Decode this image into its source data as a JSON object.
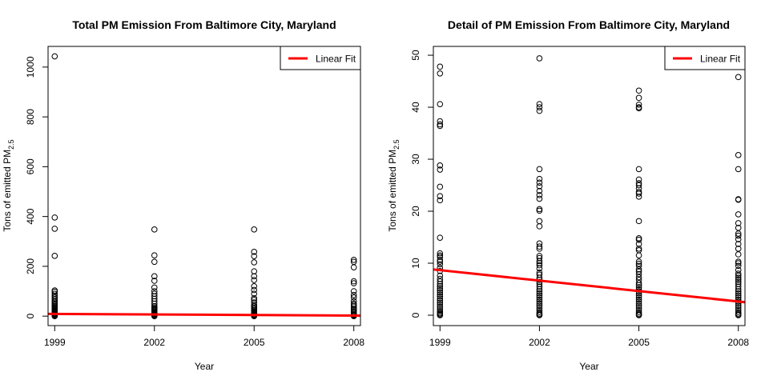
{
  "colors": {
    "fit_line": "#ff0000",
    "points": "#000000",
    "background": "#ffffff"
  },
  "chart_data": [
    {
      "type": "scatter",
      "title": "Total PM Emission From Baltimore City, Maryland",
      "xlabel": "Year",
      "ylabel": "Tons of emitted PM",
      "ylabel_sub": "2.5",
      "xlim": [
        1998.8,
        2008.2
      ],
      "ylim": [
        -38,
        1083
      ],
      "xticks": [
        1999,
        2002,
        2005,
        2008
      ],
      "xtick_labels": [
        "1999",
        "2002",
        "2005",
        "2008"
      ],
      "yticks": [
        0,
        200,
        400,
        600,
        800,
        1000
      ],
      "ytick_labels": [
        "0",
        "200",
        "400",
        "600",
        "800",
        "1000"
      ],
      "legend": {
        "position": "top-right",
        "entries": [
          {
            "label": "Linear Fit",
            "color": "#ff0000"
          }
        ]
      },
      "fit_line": {
        "x": [
          1998.8,
          2008.2
        ],
        "y": [
          9.1,
          2.2
        ]
      },
      "series": [
        {
          "x": 1999,
          "values": [
            1043,
            396,
            351,
            242,
            103,
            98,
            90,
            82,
            75,
            68,
            60,
            55,
            50,
            45,
            40,
            36,
            32,
            28,
            25,
            22,
            20,
            18,
            15,
            12,
            10,
            8,
            6,
            4,
            2,
            1,
            0
          ]
        },
        {
          "x": 2002,
          "values": [
            348,
            244,
            218,
            160,
            142,
            115,
            100,
            90,
            80,
            70,
            60,
            50,
            40,
            35,
            30,
            27,
            24,
            20,
            16,
            12,
            9,
            6,
            3,
            1,
            0
          ]
        },
        {
          "x": 2005,
          "values": [
            348,
            258,
            241,
            216,
            180,
            160,
            145,
            120,
            105,
            90,
            72,
            65,
            55,
            45,
            40,
            35,
            30,
            25,
            20,
            16,
            12,
            8,
            5,
            3,
            1,
            0
          ]
        },
        {
          "x": 2008,
          "values": [
            226,
            218,
            196,
            140,
            132,
            100,
            85,
            75,
            60,
            50,
            45,
            38,
            30,
            25,
            20,
            15,
            10,
            6,
            3,
            1,
            0
          ]
        }
      ]
    },
    {
      "type": "scatter",
      "title": "Detail of PM Emission From Baltimore City, Maryland",
      "xlabel": "Year",
      "ylabel": "Tons of emitted PM",
      "ylabel_sub": "2.5",
      "xlim": [
        1998.8,
        2008.2
      ],
      "ylim": [
        -2,
        51.7
      ],
      "xticks": [
        1999,
        2002,
        2005,
        2008
      ],
      "xtick_labels": [
        "1999",
        "2002",
        "2005",
        "2008"
      ],
      "yticks": [
        0,
        10,
        20,
        30,
        40,
        50
      ],
      "ytick_labels": [
        "0",
        "10",
        "20",
        "30",
        "40",
        "50"
      ],
      "legend": {
        "position": "top-right",
        "entries": [
          {
            "label": "Linear Fit",
            "color": "#ff0000"
          }
        ]
      },
      "fit_line": {
        "x": [
          1998.8,
          2008.2
        ],
        "y": [
          8.8,
          2.5
        ]
      },
      "series": [
        {
          "x": 1999,
          "values": [
            47.8,
            46.5,
            40.6,
            37.3,
            36.7,
            36.4,
            28.8,
            28.0,
            24.7,
            22.9,
            22.1,
            14.9,
            11.9,
            11.5,
            11.2,
            10.6,
            10.3,
            9.8,
            9.1,
            8.5,
            7.6,
            7.0,
            6.5,
            6.0,
            5.6,
            5.2,
            4.8,
            4.4,
            4.0,
            3.6,
            3.2,
            2.8,
            2.4,
            2.0,
            1.6,
            1.2,
            0.8,
            0.5,
            0.3,
            0.1,
            0.0
          ]
        },
        {
          "x": 2002,
          "values": [
            49.4,
            40.6,
            40.0,
            39.3,
            28.1,
            26.2,
            25.5,
            24.8,
            23.9,
            23.1,
            22.4,
            20.4,
            20.1,
            18.1,
            17.1,
            13.8,
            13.2,
            12.8,
            11.4,
            11.0,
            10.4,
            10.0,
            9.6,
            9.0,
            8.2,
            7.8,
            7.2,
            6.8,
            6.4,
            6.0,
            5.5,
            5.0,
            4.6,
            4.2,
            3.8,
            3.4,
            3.0,
            2.6,
            2.2,
            1.8,
            1.4,
            1.0,
            0.6,
            0.3,
            0.1,
            0.0
          ]
        },
        {
          "x": 2005,
          "values": [
            43.2,
            41.8,
            40.5,
            40.0,
            39.8,
            28.1,
            26.1,
            25.4,
            25.0,
            24.4,
            23.7,
            23.4,
            22.8,
            18.1,
            14.8,
            14.5,
            13.7,
            12.8,
            12.5,
            11.5,
            10.3,
            9.9,
            9.5,
            8.8,
            8.4,
            7.9,
            7.3,
            6.8,
            6.2,
            5.8,
            5.4,
            5.0,
            4.6,
            4.2,
            3.8,
            3.4,
            3.0,
            2.6,
            2.2,
            1.8,
            1.4,
            1.0,
            0.6,
            0.3,
            0.1,
            0.0
          ]
        },
        {
          "x": 2008,
          "values": [
            45.8,
            30.8,
            28.1,
            22.3,
            22.2,
            19.4,
            17.7,
            16.8,
            15.7,
            15.3,
            14.6,
            13.7,
            12.8,
            11.7,
            10.3,
            10.0,
            9.5,
            8.7,
            8.0,
            7.6,
            7.2,
            6.8,
            6.4,
            6.0,
            5.5,
            5.0,
            4.6,
            4.2,
            3.8,
            3.4,
            3.0,
            2.6,
            2.2,
            1.8,
            1.4,
            1.0,
            0.6,
            0.3,
            0.1,
            0.0
          ]
        }
      ]
    }
  ]
}
